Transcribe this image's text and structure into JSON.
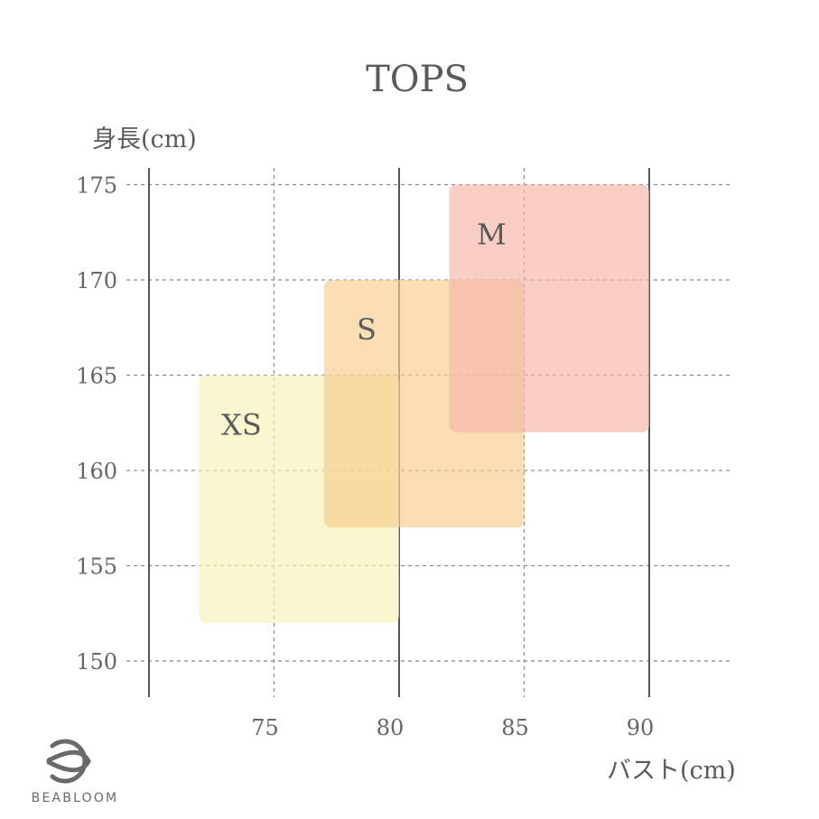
{
  "chart_data": {
    "type": "range-rectangles",
    "title": "TOPS",
    "ylabel": "身長(cm)",
    "xlabel": "バスト(cm)",
    "xlim": [
      70,
      93
    ],
    "ylim": [
      148,
      177
    ],
    "x_ticks": [
      75,
      80,
      85,
      90
    ],
    "y_ticks": [
      150,
      155,
      160,
      165,
      170,
      175
    ],
    "grid": true,
    "series": [
      {
        "name": "XS",
        "x_range": [
          72,
          80
        ],
        "y_range": [
          152,
          165
        ],
        "color": "#f7f2b8"
      },
      {
        "name": "S",
        "x_range": [
          77,
          85
        ],
        "y_range": [
          157,
          170
        ],
        "color": "#f4cf8e"
      },
      {
        "name": "M",
        "x_range": [
          82,
          90
        ],
        "y_range": [
          162,
          175
        ],
        "color": "#f6b7aa"
      }
    ]
  },
  "brand": {
    "name": "BEABLOOM",
    "logo_icon": "beabloom-logo-icon",
    "color": "#6a6a6a"
  }
}
